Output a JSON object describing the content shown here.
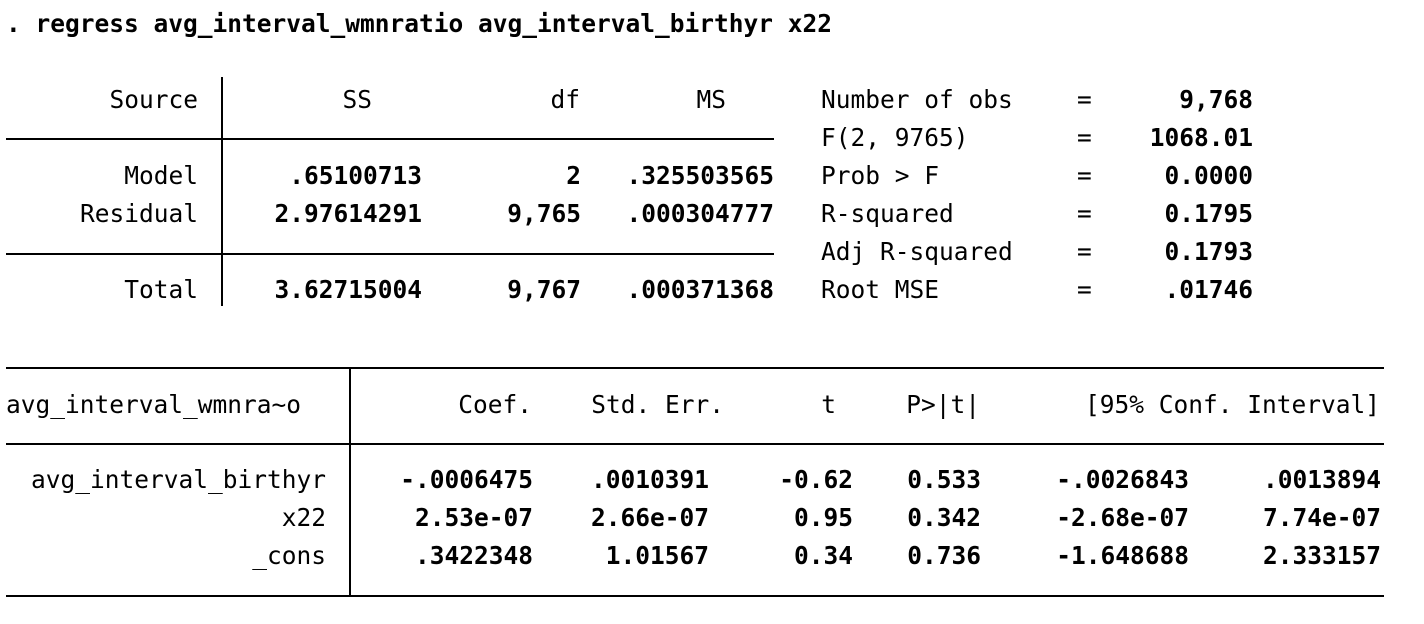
{
  "command": ". regress avg_interval_wmnratio avg_interval_birthyr x22",
  "anova": {
    "headers": {
      "source": "Source",
      "ss": "SS",
      "df": "df",
      "ms": "MS"
    },
    "rows": [
      {
        "source": "Model",
        "ss": ".65100713",
        "df": "2",
        "ms": ".325503565"
      },
      {
        "source": "Residual",
        "ss": "2.97614291",
        "df": "9,765",
        "ms": ".000304777"
      },
      {
        "source": "Total",
        "ss": "3.62715004",
        "df": "9,767",
        "ms": ".000371368"
      }
    ]
  },
  "stats": [
    {
      "label": "Number of obs",
      "eq": "=",
      "value": "9,768"
    },
    {
      "label": "F(2, 9765)",
      "eq": "=",
      "value": "1068.01"
    },
    {
      "label": "Prob > F",
      "eq": "=",
      "value": "0.0000"
    },
    {
      "label": "R-squared",
      "eq": "=",
      "value": "0.1795"
    },
    {
      "label": "Adj R-squared",
      "eq": "=",
      "value": "0.1793"
    },
    {
      "label": "Root MSE",
      "eq": "=",
      "value": ".01746"
    }
  ],
  "coef": {
    "headers": {
      "depvar": "avg_interval_wmnra~o",
      "coef": "Coef.",
      "se": "Std. Err.",
      "t": "t",
      "p": "P>|t|",
      "ci": "[95% Conf. Interval]"
    },
    "rows": [
      {
        "var": "avg_interval_birthyr",
        "coef": "-.0006475",
        "se": ".0010391",
        "t": "-0.62",
        "p": "0.533",
        "lo": "-.0026843",
        "hi": ".0013894"
      },
      {
        "var": "x22",
        "coef": "2.53e-07",
        "se": "2.66e-07",
        "t": "0.95",
        "p": "0.342",
        "lo": "-2.68e-07",
        "hi": "7.74e-07"
      },
      {
        "var": "_cons",
        "coef": ".3422348",
        "se": "1.01567",
        "t": "0.34",
        "p": "0.736",
        "lo": "-1.648688",
        "hi": "2.333157"
      }
    ]
  }
}
